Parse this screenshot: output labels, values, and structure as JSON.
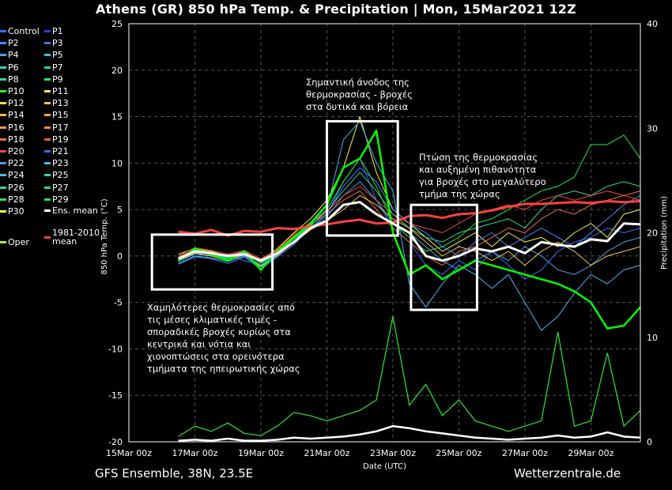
{
  "title": "Athens  (GR)  850 hPa Temp. & Precipitation | Mon, 15Mar2021 12Z",
  "footer": {
    "left": "GFS Ensemble, 38N, 23.5E",
    "right": "Wetterzentrale.de"
  },
  "legend": [
    {
      "name": "Control",
      "color": "#3b6cff"
    },
    {
      "name": "P1",
      "color": "#2a3bd6"
    },
    {
      "name": "P2",
      "color": "#4a88ff"
    },
    {
      "name": "P3",
      "color": "#3f7fe0"
    },
    {
      "name": "P4",
      "color": "#45a4e8"
    },
    {
      "name": "P5",
      "color": "#3ec4e0"
    },
    {
      "name": "P6",
      "color": "#34d1c9"
    },
    {
      "name": "P7",
      "color": "#22d19a"
    },
    {
      "name": "P8",
      "color": "#2be07a"
    },
    {
      "name": "P9",
      "color": "#31e84d"
    },
    {
      "name": "P10",
      "color": "#2ee82e"
    },
    {
      "name": "P11",
      "color": "#f6f64a"
    },
    {
      "name": "P12",
      "color": "#f3dc49"
    },
    {
      "name": "P13",
      "color": "#f0c548"
    },
    {
      "name": "P14",
      "color": "#f3b945"
    },
    {
      "name": "P15",
      "color": "#f2a541"
    },
    {
      "name": "P16",
      "color": "#ee9a55"
    },
    {
      "name": "P17",
      "color": "#f08a4c"
    },
    {
      "name": "P18",
      "color": "#f0703c"
    },
    {
      "name": "P19",
      "color": "#f25a2e"
    },
    {
      "name": "P20",
      "color": "#f04a3a"
    },
    {
      "name": "P21",
      "color": "#3a6cf0"
    },
    {
      "name": "P22",
      "color": "#4f8ff7"
    },
    {
      "name": "P23",
      "color": "#47b6f5"
    },
    {
      "name": "P24",
      "color": "#42c6e0"
    },
    {
      "name": "P25",
      "color": "#37d2b0"
    },
    {
      "name": "P26",
      "color": "#31d98d"
    },
    {
      "name": "P27",
      "color": "#29de6b"
    },
    {
      "name": "P28",
      "color": "#26e34c"
    },
    {
      "name": "P29",
      "color": "#22e83a"
    },
    {
      "name": "P30",
      "color": "#f4f442"
    },
    {
      "name": "Ens. mean",
      "color": "#ffffff"
    },
    {
      "name": "Oper",
      "color": "#9cff33"
    },
    {
      "name": "1981-2010",
      "name2": "mean",
      "color": "#ff4040"
    }
  ],
  "chart_data": {
    "type": "line",
    "xlabel": "Date (UTC)",
    "ylabel": "850 hPa Temp. (°C)",
    "ylabel_right": "Precipitation (mm)",
    "xlim": [
      0,
      15.5
    ],
    "ylim": [
      -20,
      25
    ],
    "ylim_right": [
      0,
      40
    ],
    "x_ticks": [
      0,
      2,
      4,
      6,
      8,
      10,
      12,
      14
    ],
    "x_tick_labels": [
      "15Mar 00z",
      "17Mar 00z",
      "19Mar 00z",
      "21Mar 00z",
      "23Mar 00z",
      "25Mar 00z",
      "27Mar 00z",
      "29Mar 00z"
    ],
    "y_ticks": [
      -20,
      -15,
      -10,
      -5,
      0,
      5,
      10,
      15,
      20,
      25
    ],
    "y_ticks_right": [
      0,
      10,
      20,
      30,
      40
    ],
    "grid": true,
    "series": [
      {
        "name": "Ens. mean",
        "role": "mean",
        "color": "#ffffff",
        "x": [
          1.5,
          2,
          2.5,
          3,
          3.5,
          4,
          4.5,
          5,
          5.5,
          6,
          6.5,
          7,
          7.5,
          8,
          8.5,
          9,
          9.5,
          10,
          10.5,
          11,
          11.5,
          12,
          12.5,
          13,
          13.5,
          14,
          14.5,
          15,
          15.5
        ],
        "y": [
          -0.3,
          0.5,
          0.3,
          0,
          0.2,
          -0.5,
          0.3,
          1.5,
          3.0,
          3.8,
          5.5,
          5.8,
          4.5,
          3.5,
          2.5,
          0,
          -0.5,
          0,
          0.8,
          0.5,
          1.0,
          0.3,
          1.5,
          1.2,
          1.0,
          1.8,
          1.6,
          3.5,
          3.4
        ]
      },
      {
        "name": "1981-2010 mean",
        "role": "climatology",
        "color": "#ff4040",
        "x": [
          1.5,
          2,
          2.5,
          3,
          3.5,
          4,
          4.5,
          5,
          5.5,
          6,
          6.5,
          7,
          7.5,
          8,
          8.5,
          9,
          9.5,
          10,
          10.5,
          11,
          11.5,
          12,
          12.5,
          13,
          13.5,
          14,
          14.5,
          15,
          15.5
        ],
        "y": [
          2.6,
          2.4,
          2.8,
          2.2,
          2.7,
          2.6,
          3.0,
          2.9,
          3.2,
          3.4,
          3.7,
          3.9,
          3.5,
          3.6,
          4.3,
          4.4,
          4.1,
          4.5,
          4.6,
          4.9,
          5.3,
          5.6,
          5.6,
          5.7,
          5.8,
          5.7,
          5.9,
          5.8,
          5.9
        ]
      },
      {
        "name": "Oper",
        "role": "oper",
        "color": "#00ff00",
        "x": [
          1.5,
          2,
          2.5,
          3,
          3.5,
          4,
          4.5,
          5,
          5.5,
          6,
          6.5,
          7,
          7.5,
          8,
          8.5,
          9,
          9.5,
          10,
          10.5,
          11,
          11.5,
          12,
          12.5,
          13,
          13.5,
          14,
          14.5,
          15,
          15.5
        ],
        "y": [
          -0.5,
          0.8,
          0.2,
          -0.5,
          0.5,
          -1.5,
          0.5,
          2.0,
          3.5,
          5.5,
          9.5,
          10.5,
          13.5,
          2.5,
          -2.0,
          -1.0,
          -2.5,
          -1.5,
          -0.5,
          -1.0,
          -1.5,
          -2.0,
          -2.5,
          -3.0,
          -3.8,
          -5.0,
          -7.8,
          -7.5,
          -5.5
        ]
      },
      {
        "name": "Control",
        "color": "#3b6cff",
        "x": [
          1.5,
          2,
          2.5,
          3,
          3.5,
          4,
          4.5,
          5,
          5.5,
          6,
          6.5,
          7,
          7.5,
          8,
          8.5,
          9,
          9.5,
          10,
          10.5,
          11,
          11.5,
          12,
          12.5,
          13,
          13.5,
          14,
          14.5,
          15,
          15.5
        ],
        "y": [
          -0.2,
          0.4,
          0.0,
          0.2,
          -0.5,
          -1.0,
          0.5,
          2.0,
          3.0,
          4.5,
          8.0,
          10.5,
          6.0,
          3.0,
          1.5,
          -1.0,
          -2.0,
          -0.5,
          -1.5,
          0.5,
          -1.0,
          -2.5,
          -1.5,
          0.5,
          1.5,
          2.0,
          3.0,
          2.5,
          3.0
        ]
      },
      {
        "name": "P11",
        "color": "#f6f64a",
        "x": [
          1.5,
          2,
          2.5,
          3,
          3.5,
          4,
          4.5,
          5,
          5.5,
          6,
          6.5,
          7,
          7.5,
          8,
          8.5,
          9,
          9.5,
          10,
          10.5,
          11,
          11.5,
          12,
          12.5,
          13,
          13.5,
          14,
          14.5,
          15,
          15.5
        ],
        "y": [
          0.2,
          0.8,
          0.5,
          0.0,
          0.5,
          -0.5,
          0.8,
          2.5,
          4.0,
          6.0,
          9.5,
          15.0,
          9.0,
          5.0,
          3.5,
          2.0,
          0.5,
          1.5,
          2.5,
          1.0,
          2.5,
          1.5,
          2.0,
          1.0,
          2.5,
          3.5,
          2.0,
          4.5,
          5.0
        ]
      },
      {
        "name": "P23",
        "color": "#47b6f5",
        "x": [
          1.5,
          2,
          2.5,
          3,
          3.5,
          4,
          4.5,
          5,
          5.5,
          6,
          6.5,
          7,
          7.5,
          8,
          8.5,
          9,
          9.5,
          10,
          10.5,
          11,
          11.5,
          12,
          12.5,
          13,
          13.5,
          14,
          14.5,
          15,
          15.5
        ],
        "y": [
          -0.8,
          0.0,
          -0.2,
          -0.6,
          0.0,
          -1.2,
          0.0,
          1.5,
          3.5,
          5.0,
          12.5,
          14.5,
          10.0,
          7.0,
          -3.0,
          -5.5,
          -3.0,
          -1.0,
          -2.0,
          -3.5,
          -2.0,
          -5.0,
          -8.0,
          -6.5,
          -4.0,
          -2.0,
          -3.0,
          -1.5,
          -1.0
        ]
      },
      {
        "name": "P29",
        "color": "#22e83a",
        "x": [
          1.5,
          2,
          2.5,
          3,
          3.5,
          4,
          4.5,
          5,
          5.5,
          6,
          6.5,
          7,
          7.5,
          8,
          8.5,
          9,
          9.5,
          10,
          10.5,
          11,
          11.5,
          12,
          12.5,
          13,
          13.5,
          14,
          14.5,
          15,
          15.5
        ],
        "y": [
          -0.4,
          0.6,
          0.1,
          -0.3,
          0.3,
          -0.8,
          0.4,
          1.8,
          3.2,
          5.0,
          8.0,
          10.5,
          7.5,
          3.5,
          2.0,
          0.5,
          1.0,
          2.0,
          3.5,
          4.0,
          5.0,
          6.0,
          7.0,
          7.5,
          8.5,
          12.0,
          12.0,
          13.0,
          10.5
        ]
      },
      {
        "name": "P18",
        "color": "#f0703c",
        "x": [
          1.5,
          2,
          2.5,
          3,
          3.5,
          4,
          4.5,
          5,
          5.5,
          6,
          6.5,
          7,
          7.5,
          8,
          8.5,
          9,
          9.5,
          10,
          10.5,
          11,
          11.5,
          12,
          12.5,
          13,
          13.5,
          14,
          14.5,
          15,
          15.5
        ],
        "y": [
          -0.1,
          0.7,
          0.4,
          0.1,
          0.4,
          -0.4,
          0.6,
          2.2,
          3.4,
          4.5,
          6.0,
          7.0,
          5.0,
          3.0,
          1.5,
          0.0,
          -1.0,
          0.5,
          1.0,
          2.0,
          3.0,
          2.5,
          4.0,
          5.0,
          4.5,
          5.5,
          6.0,
          6.5,
          7.0
        ]
      },
      {
        "name": "P4",
        "color": "#45a4e8",
        "x": [
          1.5,
          2,
          2.5,
          3,
          3.5,
          4,
          4.5,
          5,
          5.5,
          6,
          6.5,
          7,
          7.5,
          8,
          8.5,
          9,
          9.5,
          10,
          10.5,
          11,
          11.5,
          12,
          12.5,
          13,
          13.5,
          14,
          14.5,
          15,
          15.5
        ],
        "y": [
          -0.6,
          0.2,
          0.0,
          -0.4,
          0.1,
          -1.0,
          0.2,
          1.6,
          3.0,
          4.2,
          6.5,
          8.0,
          6.0,
          3.5,
          2.5,
          1.0,
          -0.5,
          -1.5,
          -0.5,
          0.5,
          -0.5,
          1.0,
          0.0,
          -1.5,
          -2.0,
          -1.0,
          0.5,
          1.5,
          2.0
        ]
      },
      {
        "name": "P26",
        "color": "#31d98d",
        "x": [
          1.5,
          2,
          2.5,
          3,
          3.5,
          4,
          4.5,
          5,
          5.5,
          6,
          6.5,
          7,
          7.5,
          8,
          8.5,
          9,
          9.5,
          10,
          10.5,
          11,
          11.5,
          12,
          12.5,
          13,
          13.5,
          14,
          14.5,
          15,
          15.5
        ],
        "y": [
          -0.3,
          0.5,
          0.2,
          -0.2,
          0.3,
          -0.7,
          0.4,
          1.9,
          3.3,
          4.8,
          7.0,
          9.0,
          7.0,
          4.5,
          3.0,
          2.0,
          1.5,
          2.5,
          3.0,
          3.5,
          4.0,
          3.0,
          5.0,
          6.5,
          7.0,
          6.5,
          7.5,
          8.0,
          7.5
        ]
      },
      {
        "name": "P13",
        "color": "#f0c548",
        "x": [
          1.5,
          2,
          2.5,
          3,
          3.5,
          4,
          4.5,
          5,
          5.5,
          6,
          6.5,
          7,
          7.5,
          8,
          8.5,
          9,
          9.5,
          10,
          10.5,
          11,
          11.5,
          12,
          12.5,
          13,
          13.5,
          14,
          14.5,
          15,
          15.5
        ],
        "y": [
          -0.5,
          0.3,
          0.0,
          -0.5,
          0.2,
          -1.1,
          0.1,
          1.4,
          2.8,
          3.8,
          5.0,
          6.5,
          5.5,
          4.0,
          3.0,
          1.5,
          0.0,
          1.0,
          0.5,
          -0.5,
          0.5,
          -1.0,
          0.5,
          1.5,
          0.5,
          -1.0,
          0.0,
          0.5,
          1.0
        ]
      },
      {
        "name": "P2",
        "color": "#4a88ff",
        "x": [
          1.5,
          2,
          2.5,
          3,
          3.5,
          4,
          4.5,
          5,
          5.5,
          6,
          6.5,
          7,
          7.5,
          8,
          8.5,
          9,
          9.5,
          10,
          10.5,
          11,
          11.5,
          12,
          12.5,
          13,
          13.5,
          14,
          14.5,
          15,
          15.5
        ],
        "y": [
          -0.9,
          -0.1,
          -0.3,
          -0.8,
          -0.1,
          -1.4,
          -0.1,
          1.2,
          3.0,
          4.5,
          7.5,
          9.5,
          8.0,
          5.0,
          3.5,
          2.5,
          1.0,
          0.0,
          1.5,
          2.5,
          1.0,
          2.0,
          3.0,
          2.0,
          1.0,
          2.5,
          4.0,
          5.5,
          6.5
        ]
      },
      {
        "name": "P20",
        "color": "#f04a3a",
        "x": [
          1.5,
          2,
          2.5,
          3,
          3.5,
          4,
          4.5,
          5,
          5.5,
          6,
          6.5,
          7,
          7.5,
          8,
          8.5,
          9,
          9.5,
          10,
          10.5,
          11,
          11.5,
          12,
          12.5,
          13,
          13.5,
          14,
          14.5,
          15,
          15.5
        ],
        "y": [
          0.0,
          0.9,
          0.6,
          0.2,
          0.6,
          -0.3,
          0.7,
          2.4,
          3.6,
          4.8,
          6.5,
          7.5,
          6.0,
          4.5,
          3.5,
          3.0,
          2.5,
          3.5,
          4.5,
          5.0,
          5.5,
          5.0,
          6.0,
          6.5,
          6.0,
          6.5,
          7.0,
          6.5,
          6.0
        ]
      }
    ],
    "precipitation": {
      "name": "Precipitation (mm)",
      "x": [
        1.5,
        2,
        2.5,
        3,
        3.5,
        4,
        4.5,
        5,
        5.5,
        6,
        6.5,
        7,
        7.5,
        8,
        8.5,
        9,
        9.5,
        10,
        10.5,
        11,
        11.5,
        12,
        12.5,
        13,
        13.5,
        14,
        14.5,
        15,
        15.5
      ],
      "max": [
        0.5,
        1.5,
        1.0,
        1.8,
        0.8,
        0.6,
        1.5,
        2.8,
        2.5,
        2.0,
        2.5,
        3.0,
        4.0,
        12.0,
        3.5,
        5.5,
        2.5,
        4.0,
        2.0,
        1.5,
        1.0,
        1.5,
        2.0,
        10.5,
        1.5,
        2.0,
        8.5,
        1.5,
        3.0
      ],
      "mean": [
        0.1,
        0.2,
        0.1,
        0.3,
        0.1,
        0.1,
        0.2,
        0.4,
        0.3,
        0.4,
        0.5,
        0.7,
        1.0,
        1.5,
        1.3,
        1.0,
        0.8,
        0.6,
        0.4,
        0.3,
        0.2,
        0.3,
        0.4,
        0.6,
        0.4,
        0.5,
        0.9,
        0.5,
        0.4
      ]
    }
  },
  "annotations": [
    {
      "lines": [
        "Σημαντική άνοδος της",
        "θερμοκρασίας - βροχές",
        "στα δυτικά και βόρεια"
      ]
    },
    {
      "lines": [
        "Πτώση της θερμοκρασίας",
        "και αυξημένη πιθανότητα",
        "για βροχές στο μεγαλύτερο",
        "τμήμα της χώρας"
      ]
    },
    {
      "lines": [
        "Χαμηλότερες θερμοκρασίες από",
        "τις μέσες κλιματικές τιμές -",
        "σποραδικές βροχές κυρίως στα",
        "κεντρικά και νότια και",
        "χιονοπτώσεις στα ορεινότερα",
        "τμήματα της ηπειρωτικής χώρας"
      ]
    }
  ]
}
